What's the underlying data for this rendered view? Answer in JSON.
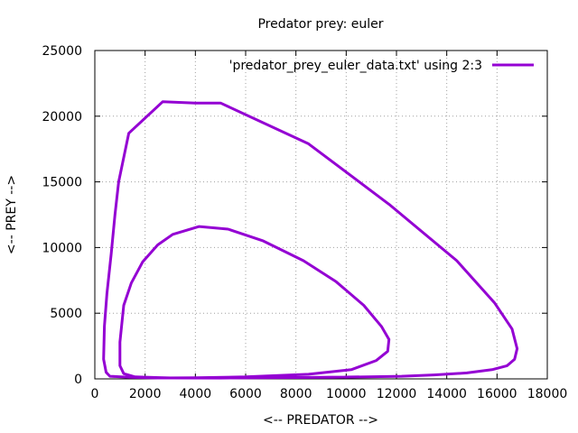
{
  "chart_data": {
    "type": "line",
    "title": "Predator prey: euler",
    "xlabel": "<-- PREDATOR -->",
    "ylabel": "<-- PREY -->",
    "xlim": [
      0,
      18000
    ],
    "ylim": [
      0,
      25000
    ],
    "x_ticks": [
      "0",
      "2000",
      "4000",
      "6000",
      "8000",
      "10000",
      "12000",
      "14000",
      "16000",
      "18000"
    ],
    "y_ticks": [
      "0",
      "5000",
      "10000",
      "15000",
      "20000",
      "25000"
    ],
    "grid": true,
    "legend_position": "top-right",
    "series": [
      {
        "name": "'predator_prey_euler_data.txt' using 2:3",
        "color": "#9400d3",
        "x": [
          10500,
          8000,
          5000,
          3000,
          1600,
          1150,
          1000,
          1000,
          1150,
          1450,
          1900,
          2500,
          3100,
          4150,
          5300,
          6700,
          8300,
          9600,
          10700,
          11400,
          11700,
          11650,
          11200,
          10200,
          8500,
          6000,
          4000,
          2500,
          1800,
          1400,
          600,
          450,
          350,
          380,
          480,
          650,
          800,
          950,
          1350,
          2700,
          4000,
          5000,
          8500,
          11700,
          14400,
          15900,
          16600,
          16800,
          16700,
          16400,
          15800,
          14800,
          13500,
          12200,
          10800,
          9500,
          8000,
          6000,
          4200
        ],
        "y": [
          150,
          100,
          60,
          70,
          150,
          400,
          1000,
          2800,
          5600,
          7300,
          8900,
          10200,
          11000,
          11600,
          11400,
          10500,
          9000,
          7400,
          5600,
          4000,
          3000,
          2100,
          1400,
          700,
          350,
          150,
          80,
          70,
          100,
          120,
          200,
          500,
          1500,
          4000,
          6500,
          9500,
          12500,
          15000,
          18700,
          21100,
          21000,
          21000,
          17900,
          13300,
          9000,
          5800,
          3800,
          2300,
          1500,
          1000,
          700,
          450,
          300,
          200,
          150,
          120,
          100,
          90,
          80
        ]
      }
    ]
  }
}
